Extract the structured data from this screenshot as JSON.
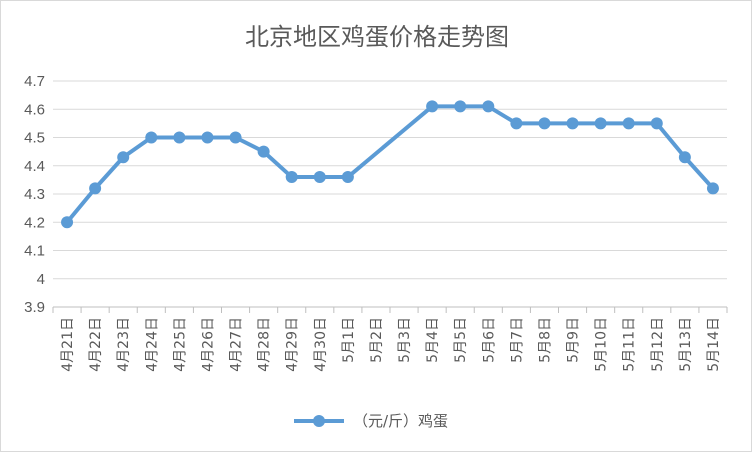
{
  "chart_data": {
    "type": "line",
    "title": "北京地区鸡蛋价格走势图",
    "xlabel": "",
    "ylabel": "",
    "ylim": [
      3.9,
      4.7
    ],
    "yticks": [
      "3.9",
      "4",
      "4.1",
      "4.2",
      "4.3",
      "4.4",
      "4.5",
      "4.6",
      "4.7"
    ],
    "grid": true,
    "legend_position": "bottom",
    "categories": [
      "4月21日",
      "4月22日",
      "4月23日",
      "4月24日",
      "4月25日",
      "4月26日",
      "4月27日",
      "4月28日",
      "4月29日",
      "4月30日",
      "5月1日",
      "5月2日",
      "5月3日",
      "5月4日",
      "5月5日",
      "5月6日",
      "5月7日",
      "5月8日",
      "5月9日",
      "5月10日",
      "5月11日",
      "5月12日",
      "5月13日",
      "5月14日"
    ],
    "series": [
      {
        "name": "（元/斤）鸡蛋",
        "color": "#5b9bd5",
        "values": [
          4.2,
          4.32,
          4.43,
          4.5,
          4.5,
          4.5,
          4.5,
          4.45,
          4.36,
          4.36,
          4.36,
          null,
          null,
          4.61,
          4.61,
          4.61,
          4.55,
          4.55,
          4.55,
          4.55,
          4.55,
          4.55,
          4.43,
          4.32
        ]
      }
    ]
  }
}
